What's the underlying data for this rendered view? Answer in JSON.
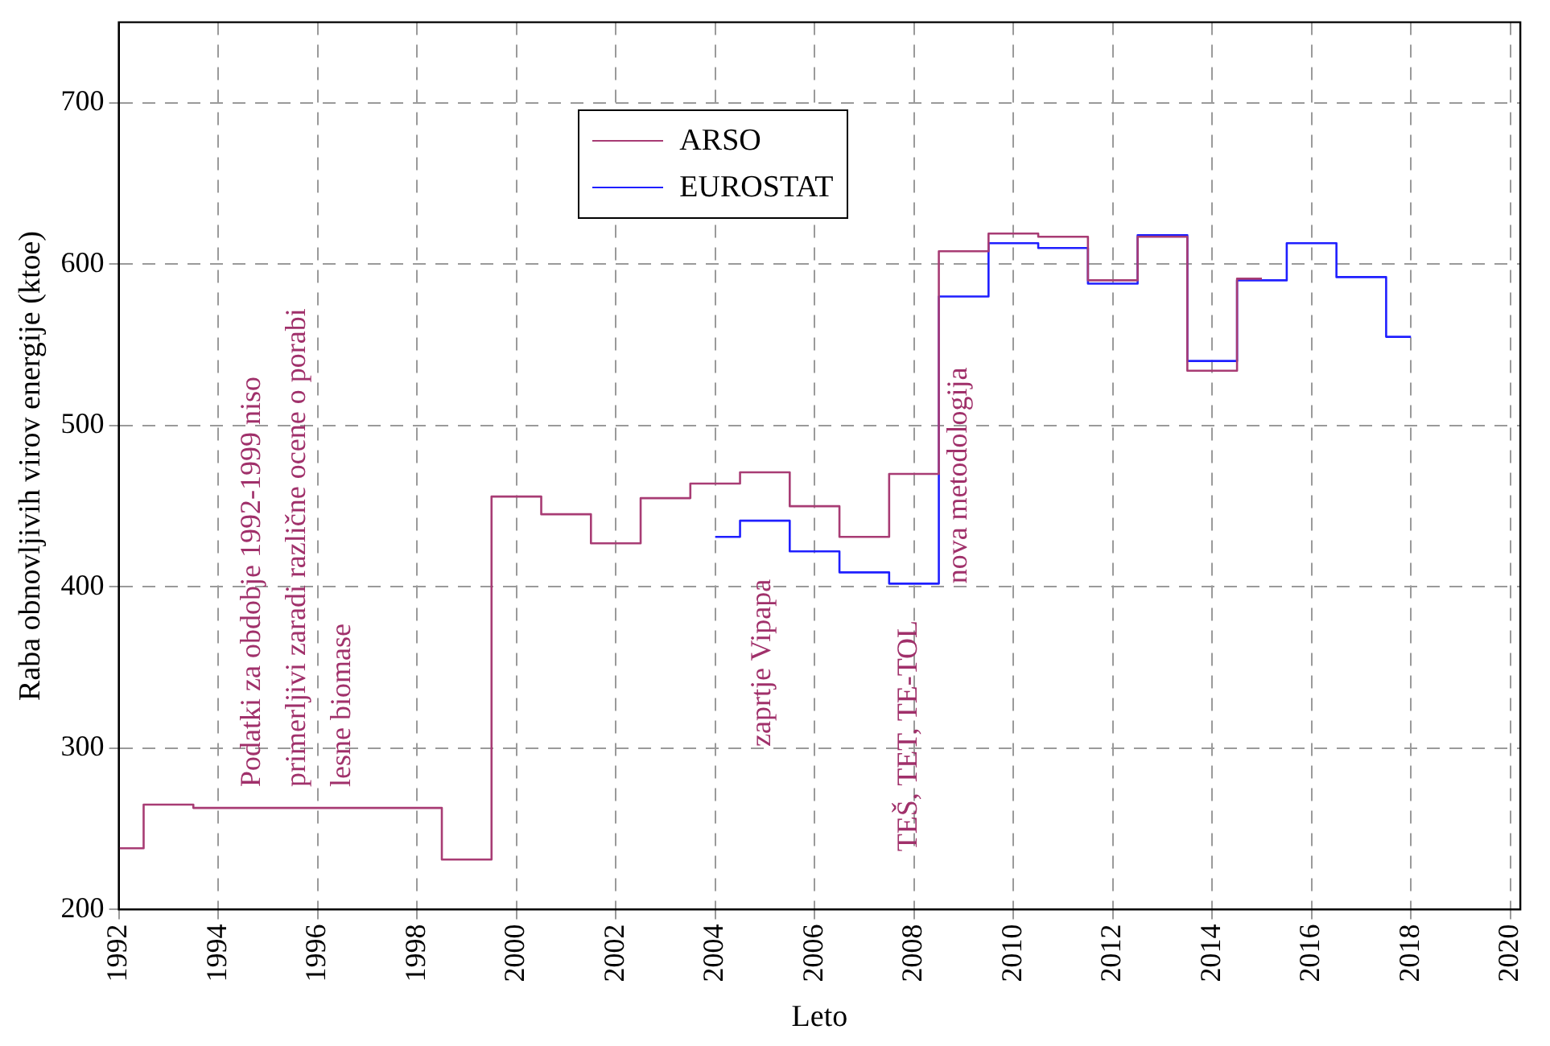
{
  "chart_data": {
    "type": "step",
    "xlabel": "Leto",
    "ylabel": "Raba obnovljivih virov energije (ktoe)",
    "xlim": [
      1992,
      2020.2
    ],
    "xticks": [
      1992,
      1994,
      1996,
      1998,
      2000,
      2002,
      2004,
      2006,
      2008,
      2010,
      2012,
      2014,
      2016,
      2018,
      2020
    ],
    "ylim": [
      200,
      750
    ],
    "yticks": [
      200,
      300,
      400,
      500,
      600,
      700
    ],
    "grid": true,
    "legend": "top",
    "line_style": "solid",
    "marker": "none",
    "series": [
      {
        "name": "ARSO",
        "color": "#a83c74",
        "x": [
          1992,
          1993,
          1994,
          1995,
          1996,
          1997,
          1998,
          1999,
          2000,
          2001,
          2002,
          2003,
          2004,
          2005,
          2006,
          2007,
          2008,
          2009,
          2010,
          2011,
          2012,
          2013,
          2014,
          2015
        ],
        "values": [
          238,
          265,
          263,
          263,
          263,
          263,
          263,
          231,
          456,
          445,
          427,
          455,
          464,
          471,
          450,
          431,
          470,
          608,
          619,
          617,
          590,
          617,
          534,
          591
        ]
      },
      {
        "name": "EUROSTAT",
        "color": "#1f1fff",
        "x": [
          2004,
          2005,
          2006,
          2007,
          2008,
          2009,
          2010,
          2011,
          2012,
          2013,
          2014,
          2015,
          2016,
          2017,
          2018
        ],
        "values": [
          431,
          441,
          422,
          409,
          402,
          580,
          613,
          610,
          588,
          618,
          540,
          590,
          613,
          592,
          555
        ]
      }
    ],
    "annotations": [
      "Podatki za obdobje 1992-1999 niso primerljivi zaradi različne ocene o porabi lesne biomase",
      "zaprtje Vipapa",
      "TEŠ, TET, TE-TOL",
      "nova metodologija"
    ]
  }
}
